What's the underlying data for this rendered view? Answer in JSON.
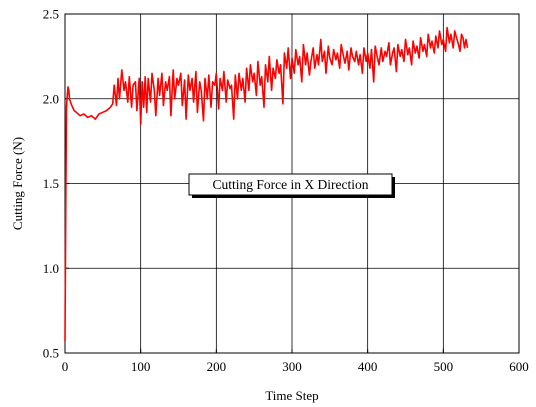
{
  "chart_data": {
    "type": "line",
    "xlabel": "Time Step",
    "ylabel": "Cutting Force (N)",
    "xlim": [
      0,
      600
    ],
    "ylim": [
      0.5,
      2.5
    ],
    "xticks": [
      0,
      100,
      200,
      300,
      400,
      500,
      600
    ],
    "xtick_labels": [
      "0",
      "100",
      "200",
      "300",
      "400",
      "500",
      "600"
    ],
    "yticks": [
      0.5,
      1.0,
      1.5,
      2.0,
      2.5
    ],
    "ytick_labels": [
      "0.5",
      "1.0",
      "1.5",
      "2.0",
      "2.5"
    ],
    "grid": true,
    "annotation": "Cutting Force in X Direction",
    "series": [
      {
        "color": "#ff0000",
        "x": [
          0,
          1,
          2,
          3,
          4,
          5,
          6,
          8,
          10,
          12,
          15,
          20,
          25,
          30,
          35,
          40,
          45,
          50,
          55,
          60,
          63,
          65,
          68,
          70,
          72,
          75,
          78,
          80,
          83,
          85,
          88,
          90,
          93,
          95,
          98,
          100,
          102,
          104,
          106,
          108,
          110,
          113,
          115,
          118,
          120,
          123,
          125,
          128,
          130,
          133,
          135,
          138,
          140,
          143,
          145,
          148,
          150,
          153,
          155,
          158,
          160,
          163,
          165,
          168,
          170,
          173,
          175,
          178,
          180,
          183,
          185,
          188,
          190,
          193,
          195,
          198,
          200,
          203,
          205,
          208,
          210,
          213,
          215,
          218,
          220,
          223,
          225,
          228,
          230,
          233,
          235,
          238,
          240,
          243,
          245,
          248,
          250,
          253,
          255,
          258,
          260,
          263,
          265,
          268,
          270,
          273,
          275,
          278,
          280,
          283,
          285,
          288,
          290,
          293,
          295,
          298,
          300,
          303,
          305,
          308,
          310,
          313,
          315,
          318,
          320,
          323,
          325,
          328,
          330,
          333,
          335,
          338,
          340,
          343,
          345,
          348,
          350,
          353,
          355,
          358,
          360,
          363,
          365,
          368,
          370,
          373,
          375,
          378,
          380,
          383,
          385,
          388,
          390,
          393,
          395,
          398,
          400,
          403,
          405,
          408,
          410,
          413,
          415,
          418,
          420,
          423,
          425,
          428,
          430,
          433,
          435,
          438,
          440,
          443,
          445,
          448,
          450,
          453,
          455,
          458,
          460,
          463,
          465,
          468,
          470,
          473,
          475,
          478,
          480,
          483,
          485,
          488,
          490,
          493,
          495,
          498,
          500,
          503,
          505,
          508,
          510,
          513,
          515,
          518,
          520,
          522,
          524,
          526,
          528,
          530,
          532
        ],
        "y": [
          0.57,
          1.4,
          1.95,
          2.02,
          2.07,
          2.05,
          2.0,
          1.97,
          1.95,
          1.93,
          1.92,
          1.9,
          1.91,
          1.89,
          1.9,
          1.88,
          1.91,
          1.92,
          1.93,
          1.95,
          1.97,
          2.08,
          1.96,
          2.12,
          2.0,
          2.17,
          2.05,
          2.1,
          1.98,
          2.13,
          1.95,
          2.08,
          2.1,
          1.93,
          2.12,
          1.85,
          2.1,
          1.95,
          2.13,
          1.92,
          2.12,
          1.98,
          2.15,
          2.05,
          1.9,
          2.12,
          2.02,
          2.15,
          1.96,
          2.1,
          2.05,
          2.13,
          1.9,
          2.17,
          2.0,
          2.12,
          2.08,
          2.15,
          1.96,
          2.11,
          1.88,
          2.14,
          2.05,
          2.12,
          1.98,
          2.16,
          1.92,
          2.1,
          2.05,
          1.87,
          2.12,
          2.0,
          2.14,
          1.95,
          2.1,
          2.08,
          2.15,
          1.94,
          2.12,
          2.05,
          2.16,
          1.98,
          2.11,
          2.06,
          2.08,
          1.88,
          2.14,
          2.0,
          2.15,
          2.05,
          2.12,
          1.98,
          2.18,
          2.05,
          2.2,
          2.1,
          2.15,
          2.02,
          2.22,
          2.08,
          2.13,
          1.95,
          2.2,
          2.1,
          2.25,
          2.05,
          2.18,
          2.12,
          2.23,
          2.15,
          2.2,
          1.97,
          2.27,
          2.18,
          2.3,
          2.12,
          2.24,
          2.15,
          2.29,
          2.2,
          2.25,
          2.1,
          2.32,
          2.2,
          2.27,
          2.14,
          2.22,
          2.3,
          2.18,
          2.26,
          2.2,
          2.35,
          2.22,
          2.28,
          2.15,
          2.31,
          2.24,
          2.2,
          2.29,
          2.23,
          2.27,
          2.18,
          2.32,
          2.25,
          2.21,
          2.28,
          2.17,
          2.3,
          2.25,
          2.22,
          2.28,
          2.2,
          2.26,
          2.15,
          2.3,
          2.22,
          2.27,
          2.18,
          2.29,
          2.1,
          2.31,
          2.24,
          2.2,
          2.3,
          2.22,
          2.28,
          2.25,
          2.33,
          2.2,
          2.27,
          2.3,
          2.16,
          2.32,
          2.25,
          2.29,
          2.22,
          2.35,
          2.26,
          2.3,
          2.2,
          2.34,
          2.27,
          2.31,
          2.24,
          2.36,
          2.28,
          2.32,
          2.25,
          2.38,
          2.3,
          2.34,
          2.27,
          2.37,
          2.3,
          2.4,
          2.32,
          2.35,
          2.28,
          2.42,
          2.33,
          2.38,
          2.3,
          2.4,
          2.35,
          2.32,
          2.28,
          2.38,
          2.36,
          2.3,
          2.35,
          2.3
        ]
      }
    ]
  }
}
